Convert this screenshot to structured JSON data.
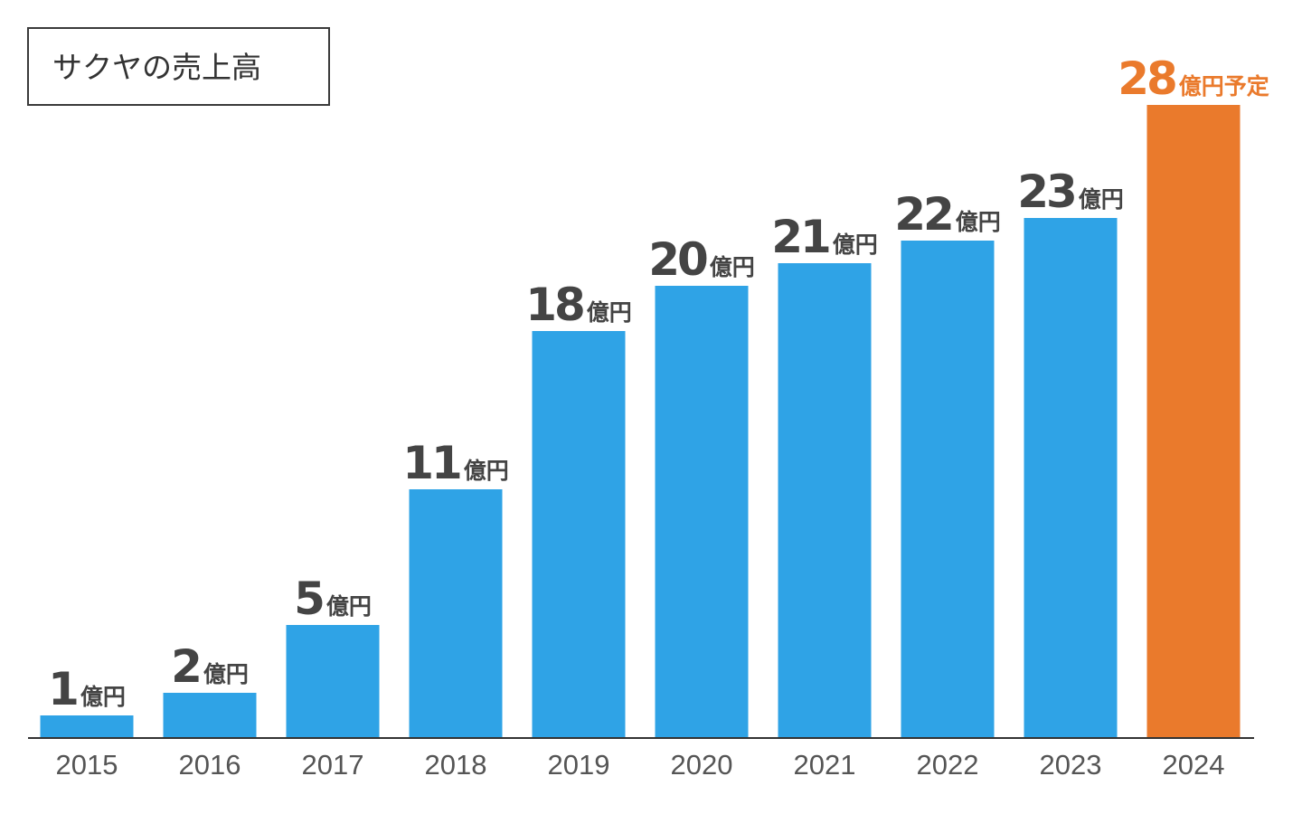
{
  "colors": {
    "bar": "#2fa3e6",
    "highlight_bar": "#ea7a2c",
    "label": "#444444",
    "highlight_label": "#ea7a2c"
  },
  "chart_data": {
    "type": "bar",
    "title": "サクヤの売上高",
    "xlabel": "",
    "ylabel": "",
    "ylim": [
      0,
      28
    ],
    "grid": false,
    "legend": "none",
    "unit": "億円",
    "categories": [
      "2015",
      "2016",
      "2017",
      "2018",
      "2019",
      "2020",
      "2021",
      "2022",
      "2023",
      "2024"
    ],
    "values": [
      1,
      2,
      5,
      11,
      18,
      20,
      21,
      22,
      23,
      28
    ],
    "data_labels": [
      {
        "num": "1",
        "unit": "億円"
      },
      {
        "num": "2",
        "unit": "億円"
      },
      {
        "num": "5",
        "unit": "億円"
      },
      {
        "num": "11",
        "unit": "億円"
      },
      {
        "num": "18",
        "unit": "億円"
      },
      {
        "num": "20",
        "unit": "億円"
      },
      {
        "num": "21",
        "unit": "億円"
      },
      {
        "num": "22",
        "unit": "億円"
      },
      {
        "num": "23",
        "unit": "億円"
      },
      {
        "num": "28",
        "unit": "億円予定"
      }
    ],
    "highlight_category": "2024"
  }
}
